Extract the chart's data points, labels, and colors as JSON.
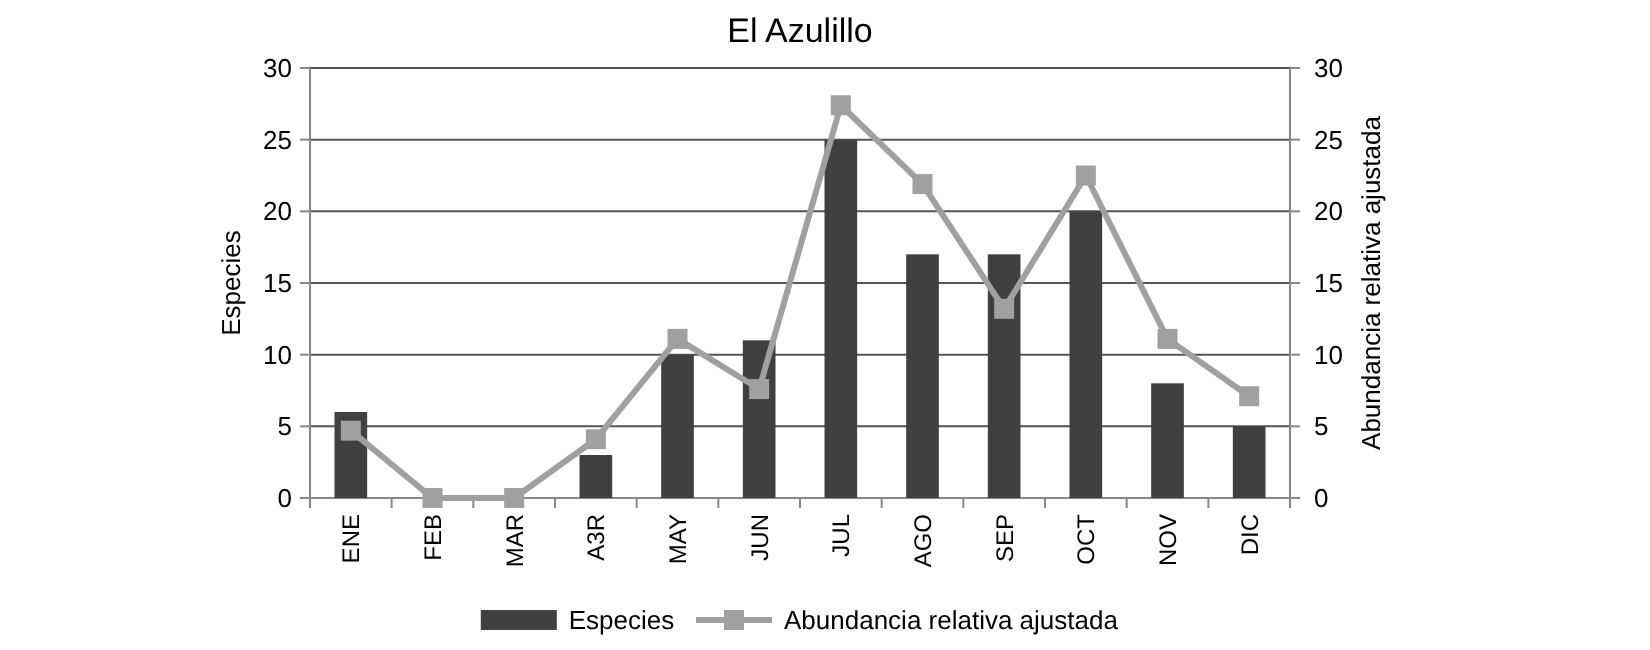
{
  "chart_data": {
    "type": "bar",
    "title": "El Azulillo",
    "ylabel": "Especies",
    "y2label": "Abundancia relativa ajustada",
    "categories": [
      "ENE",
      "FEB",
      "MAR",
      "A3R",
      "MAY",
      "JUN",
      "JUL",
      "AGO",
      "SEP",
      "OCT",
      "NOV",
      "DIC"
    ],
    "series": [
      {
        "name": "Especies",
        "color": "#404040",
        "values": [
          6,
          0,
          0,
          3,
          10,
          11,
          25,
          17,
          17,
          20,
          8,
          5
        ]
      },
      {
        "name": "Abundancia relativa ajustada",
        "type": "line",
        "axis": "y2",
        "color": "#a0a0a0",
        "values": [
          4.7,
          0,
          0,
          4.1,
          11.1,
          7.6,
          27.4,
          21.9,
          13.2,
          22.5,
          11.1,
          7.1
        ]
      }
    ],
    "ylim": [
      0,
      30
    ],
    "yticks": [
      0,
      5,
      10,
      15,
      20,
      25,
      30
    ],
    "y2lim": [
      0,
      30
    ],
    "y2ticks": [
      0,
      5,
      10,
      15,
      20,
      25,
      30
    ],
    "grid": "y",
    "legend": "bottom",
    "marker": "square",
    "line_style": "solid"
  }
}
